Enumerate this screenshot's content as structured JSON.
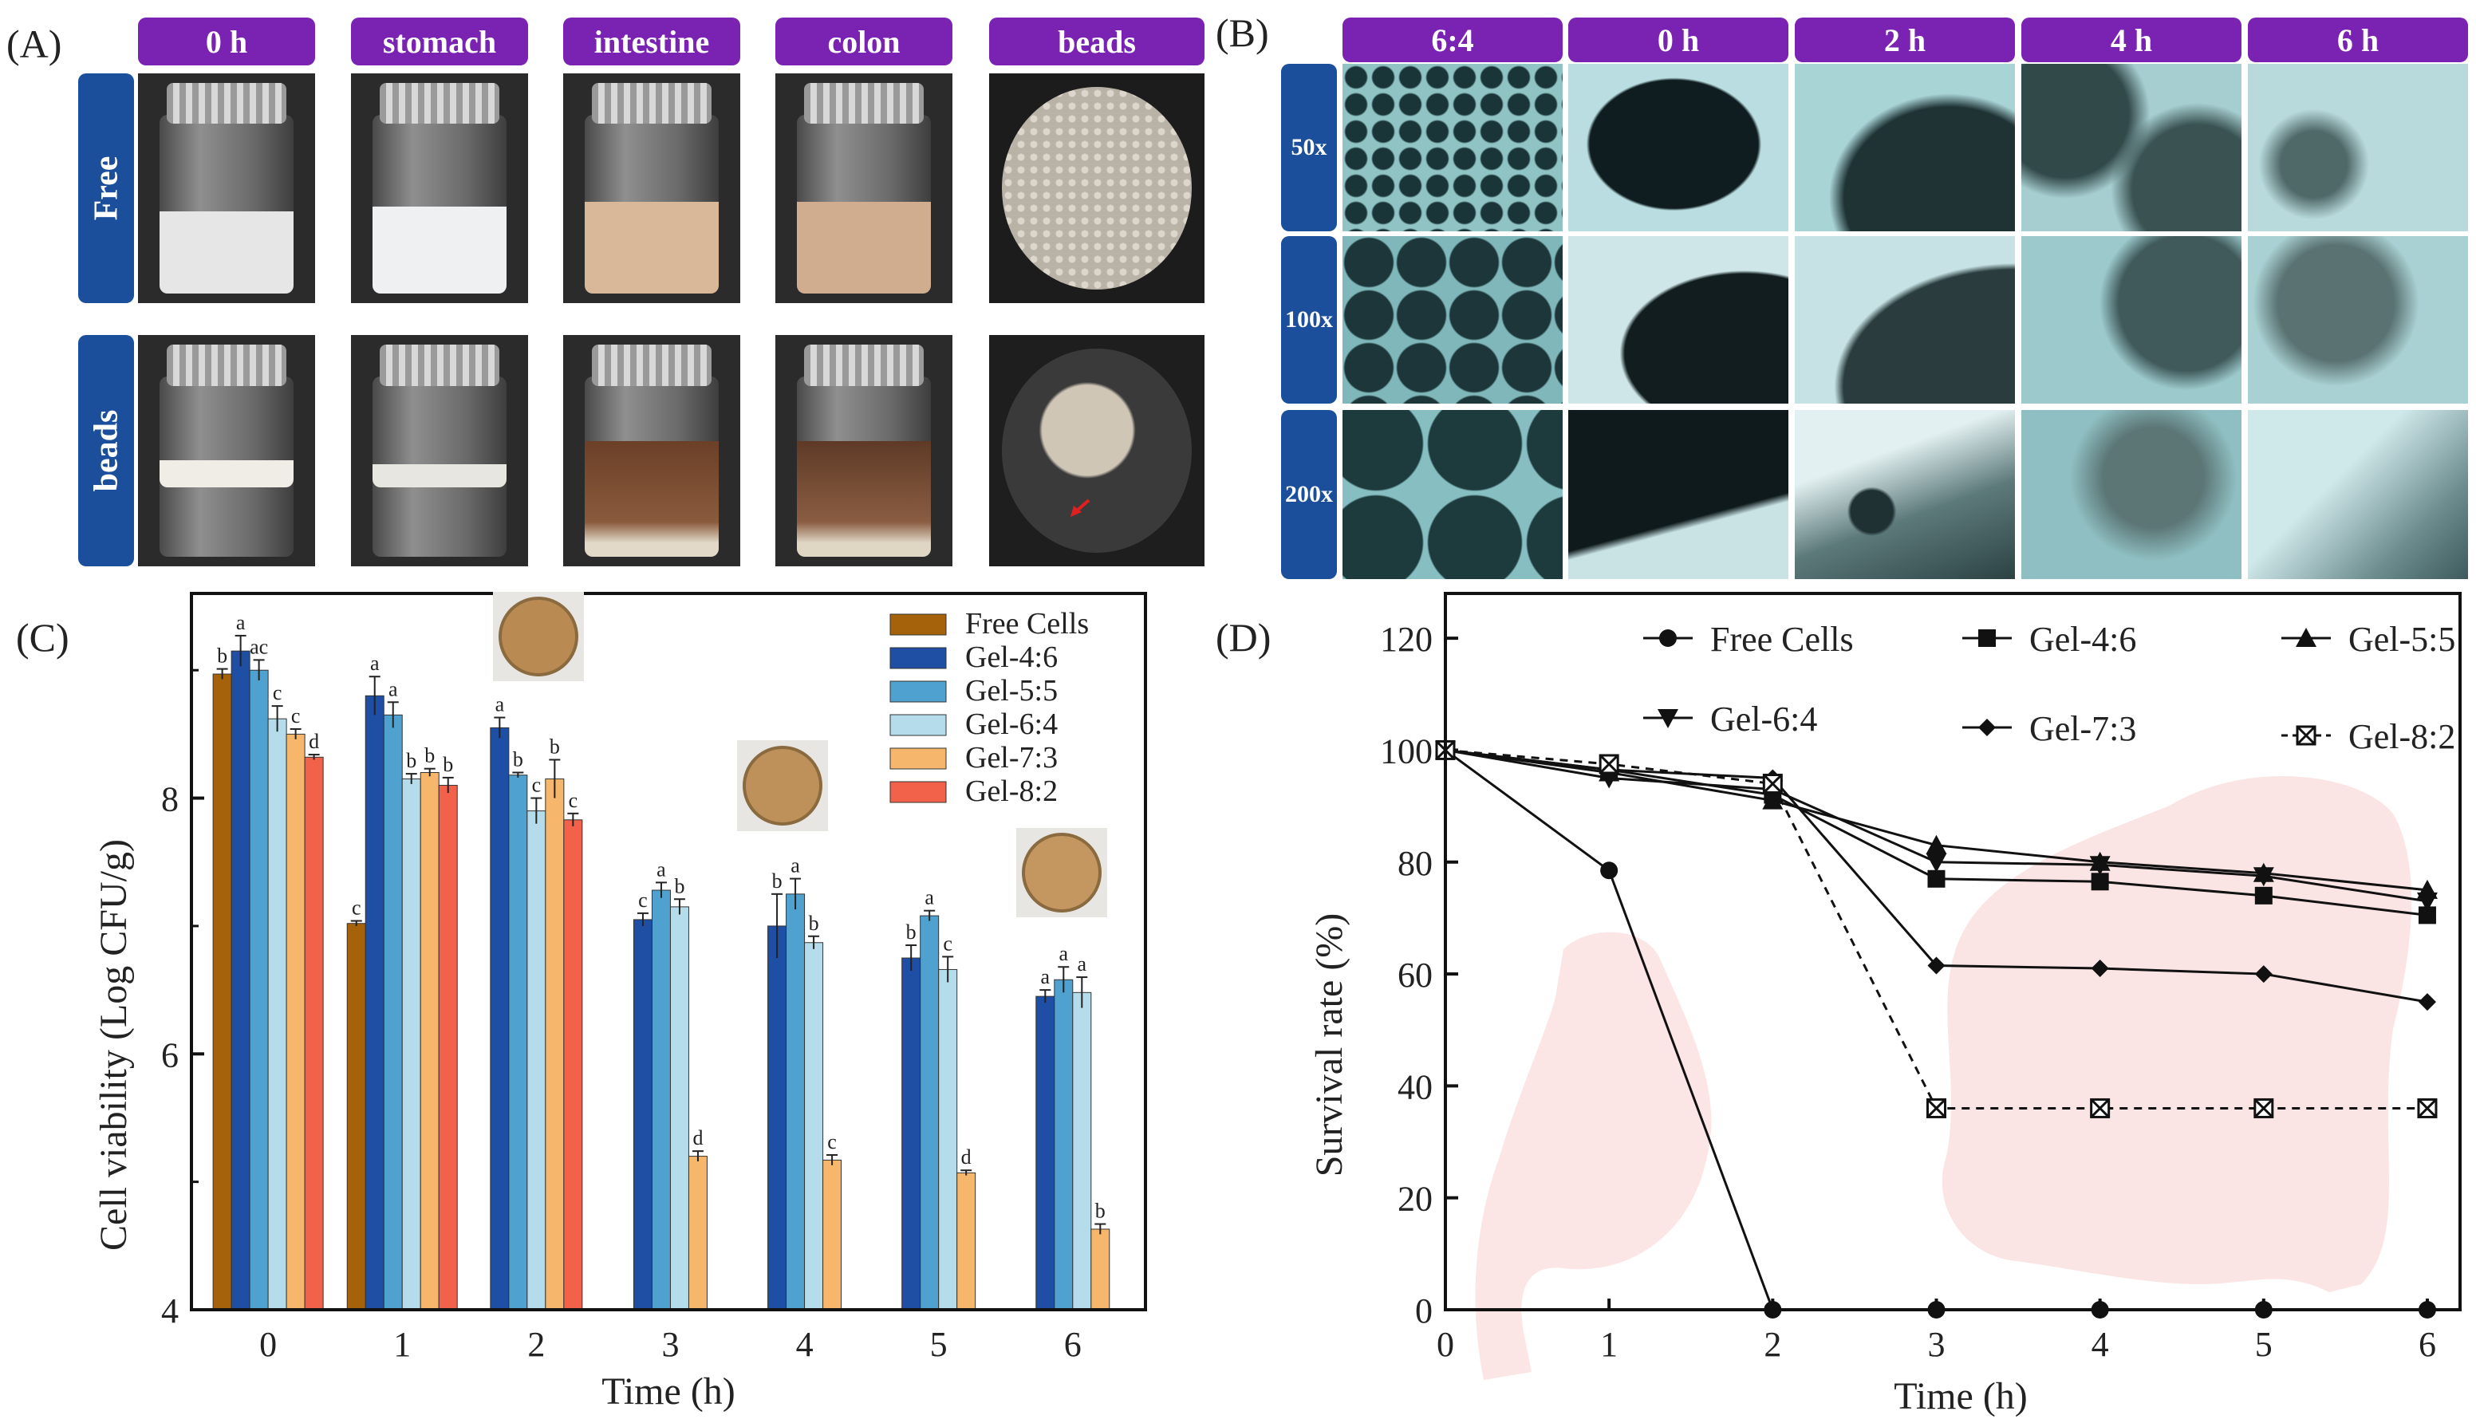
{
  "panels": {
    "A": "(A)",
    "B": "(B)",
    "C": "(C)",
    "D": "(D)"
  },
  "panel_a": {
    "columns": [
      "0 h",
      "stomach",
      "intestine",
      "colon",
      "beads"
    ],
    "rows": [
      "Free",
      "beads"
    ]
  },
  "panel_b": {
    "columns": [
      "6:4",
      "0 h",
      "2 h",
      "4 h",
      "6 h"
    ],
    "rows": [
      "50x",
      "100x",
      "200x"
    ]
  },
  "colors": {
    "header_purple": "#7a23b3",
    "tab_blue": "#1b4f9c",
    "free": "#a5620b",
    "gel46": "#1f4ea5",
    "gel55": "#4fa2cf",
    "gel64": "#b5dceb",
    "gel73": "#f6b66b",
    "gel82": "#f2624a"
  },
  "chart_data": [
    {
      "type": "bar",
      "xlabel": "Time (h)",
      "ylabel": "Cell viability (Log CFU/g)",
      "ylim": [
        4,
        9.6
      ],
      "yticks": [
        "4",
        "6",
        "8"
      ],
      "categories": [
        "0",
        "1",
        "2",
        "3",
        "4",
        "5",
        "6"
      ],
      "legend_position": "top-right",
      "series": [
        {
          "name": "Free Cells",
          "color": "#a5620b",
          "values": [
            8.97,
            7.02,
            null,
            null,
            null,
            null,
            null
          ],
          "err": [
            0.04,
            0.02,
            0,
            0,
            0,
            0,
            0
          ],
          "letters": [
            "b",
            "c",
            "",
            "",
            "",
            "",
            ""
          ]
        },
        {
          "name": "Gel-4:6",
          "color": "#1f4ea5",
          "values": [
            9.15,
            8.8,
            8.55,
            7.05,
            7.0,
            6.75,
            6.45
          ],
          "err": [
            0.12,
            0.15,
            0.08,
            0.05,
            0.25,
            0.1,
            0.05
          ],
          "letters": [
            "a",
            "a",
            "a",
            "c",
            "b",
            "b",
            "a"
          ]
        },
        {
          "name": "Gel-5:5",
          "color": "#4fa2cf",
          "values": [
            9.0,
            8.65,
            8.18,
            7.28,
            7.25,
            7.08,
            6.58
          ],
          "err": [
            0.08,
            0.1,
            0.02,
            0.06,
            0.12,
            0.04,
            0.1
          ],
          "letters": [
            "ac",
            "a",
            "b",
            "a",
            "a",
            "a",
            "a"
          ]
        },
        {
          "name": "Gel-6:4",
          "color": "#b5dceb",
          "values": [
            8.62,
            8.15,
            7.9,
            7.15,
            6.87,
            6.66,
            6.48
          ],
          "err": [
            0.1,
            0.04,
            0.1,
            0.06,
            0.05,
            0.1,
            0.12
          ],
          "letters": [
            "c",
            "b",
            "c",
            "b",
            "b",
            "c",
            "a"
          ]
        },
        {
          "name": "Gel-7:3",
          "color": "#f6b66b",
          "values": [
            8.5,
            8.2,
            8.15,
            5.2,
            5.17,
            5.07,
            4.63
          ],
          "err": [
            0.04,
            0.03,
            0.15,
            0.04,
            0.04,
            0.02,
            0.04
          ],
          "letters": [
            "c",
            "b",
            "b",
            "d",
            "c",
            "d",
            "b"
          ]
        },
        {
          "name": "Gel-8:2",
          "color": "#f2624a",
          "values": [
            8.32,
            8.1,
            7.83,
            null,
            null,
            null,
            null
          ],
          "err": [
            0.02,
            0.06,
            0.05,
            0,
            0,
            0,
            0
          ],
          "letters": [
            "d",
            "b",
            "c",
            "",
            "",
            "",
            ""
          ]
        }
      ]
    },
    {
      "type": "line",
      "xlabel": "Time (h)",
      "ylabel": "Survival rate (%)",
      "xlim": [
        0,
        6.2
      ],
      "ylim": [
        0,
        128
      ],
      "x": [
        0,
        1,
        2,
        3,
        4,
        5,
        6
      ],
      "yticks": [
        "0",
        "20",
        "40",
        "60",
        "80",
        "100",
        "120"
      ],
      "legend_position": "top",
      "series": [
        {
          "name": "Free Cells",
          "marker": "circle",
          "dashed": false,
          "values": [
            100,
            78.5,
            0,
            0,
            0,
            0,
            0
          ]
        },
        {
          "name": "Gel-4:6",
          "marker": "square",
          "dashed": false,
          "values": [
            100,
            96.5,
            92,
            77,
            76.5,
            74,
            70.5
          ]
        },
        {
          "name": "Gel-5:5",
          "marker": "triangle-up",
          "dashed": false,
          "values": [
            100,
            96,
            91,
            83,
            80,
            78,
            75
          ]
        },
        {
          "name": "Gel-6:4",
          "marker": "triangle-down",
          "dashed": false,
          "values": [
            100,
            95,
            93,
            80,
            79.5,
            77.5,
            73
          ]
        },
        {
          "name": "Gel-7:3",
          "marker": "diamond",
          "dashed": false,
          "values": [
            100,
            96.5,
            95,
            61.5,
            61,
            60,
            55
          ]
        },
        {
          "name": "Gel-8:2",
          "marker": "boxed-x",
          "dashed": true,
          "values": [
            100,
            97.5,
            94,
            36,
            36,
            36,
            36
          ]
        }
      ]
    }
  ]
}
